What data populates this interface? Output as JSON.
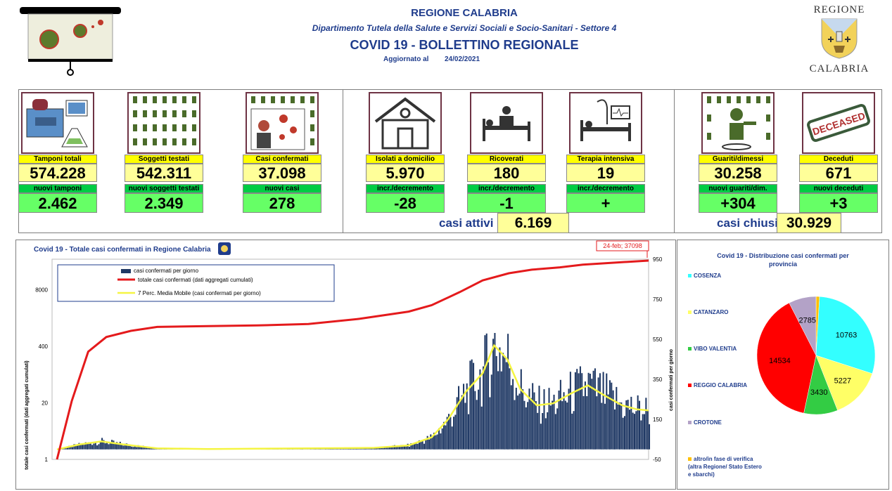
{
  "header": {
    "region": "REGIONE CALABRIA",
    "department": "Dipartimento Tutela della Salute e Servizi Sociali e Socio-Sanitari - Settore 4",
    "title": "COVID 19 - BOLLETTINO REGIONALE",
    "updated_label": "Aggiornato al",
    "updated_date": "24/02/2021"
  },
  "logo": {
    "top": "REGIONE",
    "bottom": "CALABRIA"
  },
  "cards": [
    {
      "id": "tamponi",
      "label": "Tamponi totali",
      "value": "574.228",
      "sub_label": "nuovi tamponi",
      "sub_value": "2.462",
      "icon": "lab-equipment-icon"
    },
    {
      "id": "soggetti",
      "label": "Soggetti testati",
      "value": "542.311",
      "sub_label": "nuovi soggetti testati",
      "sub_value": "2.349",
      "icon": "people-grid-icon"
    },
    {
      "id": "casi",
      "label": "Casi confermati",
      "value": "37.098",
      "sub_label": "nuovi casi",
      "sub_value": "278",
      "icon": "infected-person-icon"
    },
    {
      "id": "isolati",
      "label": "Isolati a domicilio",
      "value": "5.970",
      "sub_label": "incr./decremento",
      "sub_value": "-28",
      "icon": "house-icon"
    },
    {
      "id": "ricoverati",
      "label": "Ricoverati",
      "value": "180",
      "sub_label": "incr./decremento",
      "sub_value": "-1",
      "icon": "hospital-bed-icon"
    },
    {
      "id": "terapia",
      "label": "Terapia intensiva",
      "value": "19",
      "sub_label": "incr./decremento",
      "sub_value": "+",
      "icon": "icu-bed-icon"
    },
    {
      "id": "guariti",
      "label": "Guariti/dimessi",
      "value": "30.258",
      "sub_label": "nuovi guariti/dim.",
      "sub_value": "+304",
      "icon": "recovered-person-icon"
    },
    {
      "id": "deceduti",
      "label": "Deceduti",
      "value": "671",
      "sub_label": "nuovi deceduti",
      "sub_value": "+3",
      "icon": "deceased-stamp-icon"
    }
  ],
  "deceased_stamp": "DECEASED",
  "summary": {
    "attivi_label": "casi attivi",
    "attivi_value": "6.169",
    "chiusi_label": "casi chiusi",
    "chiusi_value": "30.929"
  },
  "colors": {
    "bars": "#1f3864",
    "cumulative": "#e41a1c",
    "moving_avg": "#f5f542",
    "header_blue": "#1f3c8c"
  },
  "chart_data": [
    {
      "type": "bar",
      "title": "Covid 19 - Totale casi confermati in Regione Calabria",
      "ylabel_left": "totale casi confermati (dati aggregati cumulati)",
      "ylabel_right": "casi confermati per giorno",
      "left_axis_scale": "log",
      "left_ticks": [
        "1",
        "20",
        "400",
        "8000"
      ],
      "right_ticks": [
        "-50",
        "150",
        "350",
        "550",
        "750",
        "950"
      ],
      "right_ylim": [
        -50,
        950
      ],
      "annotation": "24-feb; 37098",
      "legend_placement": "top-left",
      "legend": [
        {
          "name": "casi confermati per giorno",
          "kind": "bar"
        },
        {
          "name": "totale casi confermati (dati aggregati cumulati)",
          "kind": "line"
        },
        {
          "name": "7 Perc. Media Mobile (casi confermati per giorno)",
          "kind": "line"
        }
      ],
      "grid": false,
      "period": {
        "start": "2020-02-27",
        "end": "2021-02-24"
      },
      "series": [
        {
          "name": "totale casi confermati (dati aggregati cumulati)",
          "points": [
            [
              "2020-03-01",
              1
            ],
            [
              "2020-03-10",
              22
            ],
            [
              "2020-03-20",
              300
            ],
            [
              "2020-03-31",
              650
            ],
            [
              "2020-04-15",
              900
            ],
            [
              "2020-05-01",
              1110
            ],
            [
              "2020-06-01",
              1160
            ],
            [
              "2020-07-01",
              1200
            ],
            [
              "2020-08-01",
              1300
            ],
            [
              "2020-09-01",
              1700
            ],
            [
              "2020-10-01",
              2500
            ],
            [
              "2020-10-15",
              3500
            ],
            [
              "2020-11-01",
              7000
            ],
            [
              "2020-11-15",
              13000
            ],
            [
              "2020-12-01",
              19000
            ],
            [
              "2020-12-15",
              23000
            ],
            [
              "2021-01-01",
              26000
            ],
            [
              "2021-01-15",
              30000
            ],
            [
              "2021-02-01",
              33000
            ],
            [
              "2021-02-24",
              37098
            ]
          ]
        },
        {
          "name": "7 Perc. Media Mobile (casi confermati per giorno)",
          "points": [
            [
              "2020-03-01",
              0
            ],
            [
              "2020-03-15",
              25
            ],
            [
              "2020-03-28",
              40
            ],
            [
              "2020-04-10",
              25
            ],
            [
              "2020-05-01",
              5
            ],
            [
              "2020-06-01",
              2
            ],
            [
              "2020-08-01",
              5
            ],
            [
              "2020-09-10",
              8
            ],
            [
              "2020-10-01",
              20
            ],
            [
              "2020-10-15",
              60
            ],
            [
              "2020-10-25",
              150
            ],
            [
              "2020-11-05",
              290
            ],
            [
              "2020-11-15",
              380
            ],
            [
              "2020-11-22",
              520
            ],
            [
              "2020-11-30",
              450
            ],
            [
              "2020-12-08",
              300
            ],
            [
              "2020-12-18",
              220
            ],
            [
              "2020-12-28",
              230
            ],
            [
              "2021-01-08",
              280
            ],
            [
              "2021-01-18",
              320
            ],
            [
              "2021-01-28",
              270
            ],
            [
              "2021-02-08",
              220
            ],
            [
              "2021-02-17",
              200
            ],
            [
              "2021-02-24",
              195
            ]
          ]
        }
      ]
    },
    {
      "type": "pie",
      "title": "Covid 19 - Distribuzione casi confermati per provincia",
      "legend_placement": "left",
      "slices": [
        {
          "name": "COSENZA",
          "value": 10763,
          "color": "#33ffff"
        },
        {
          "name": "CATANZARO",
          "value": 5227,
          "color": "#ffff66"
        },
        {
          "name": "VIBO VALENTIA",
          "value": 3430,
          "color": "#33cc44"
        },
        {
          "name": "REGGIO CALABRIA",
          "value": 14534,
          "color": "#ff0000"
        },
        {
          "name": "CROTONE",
          "value": 2785,
          "color": "#b3a2c7"
        },
        {
          "name": "altro/in fase di verifica (altra Regione/ Stato Estero e sbarchi)",
          "value": 359,
          "color": "#ffc000"
        }
      ]
    }
  ]
}
